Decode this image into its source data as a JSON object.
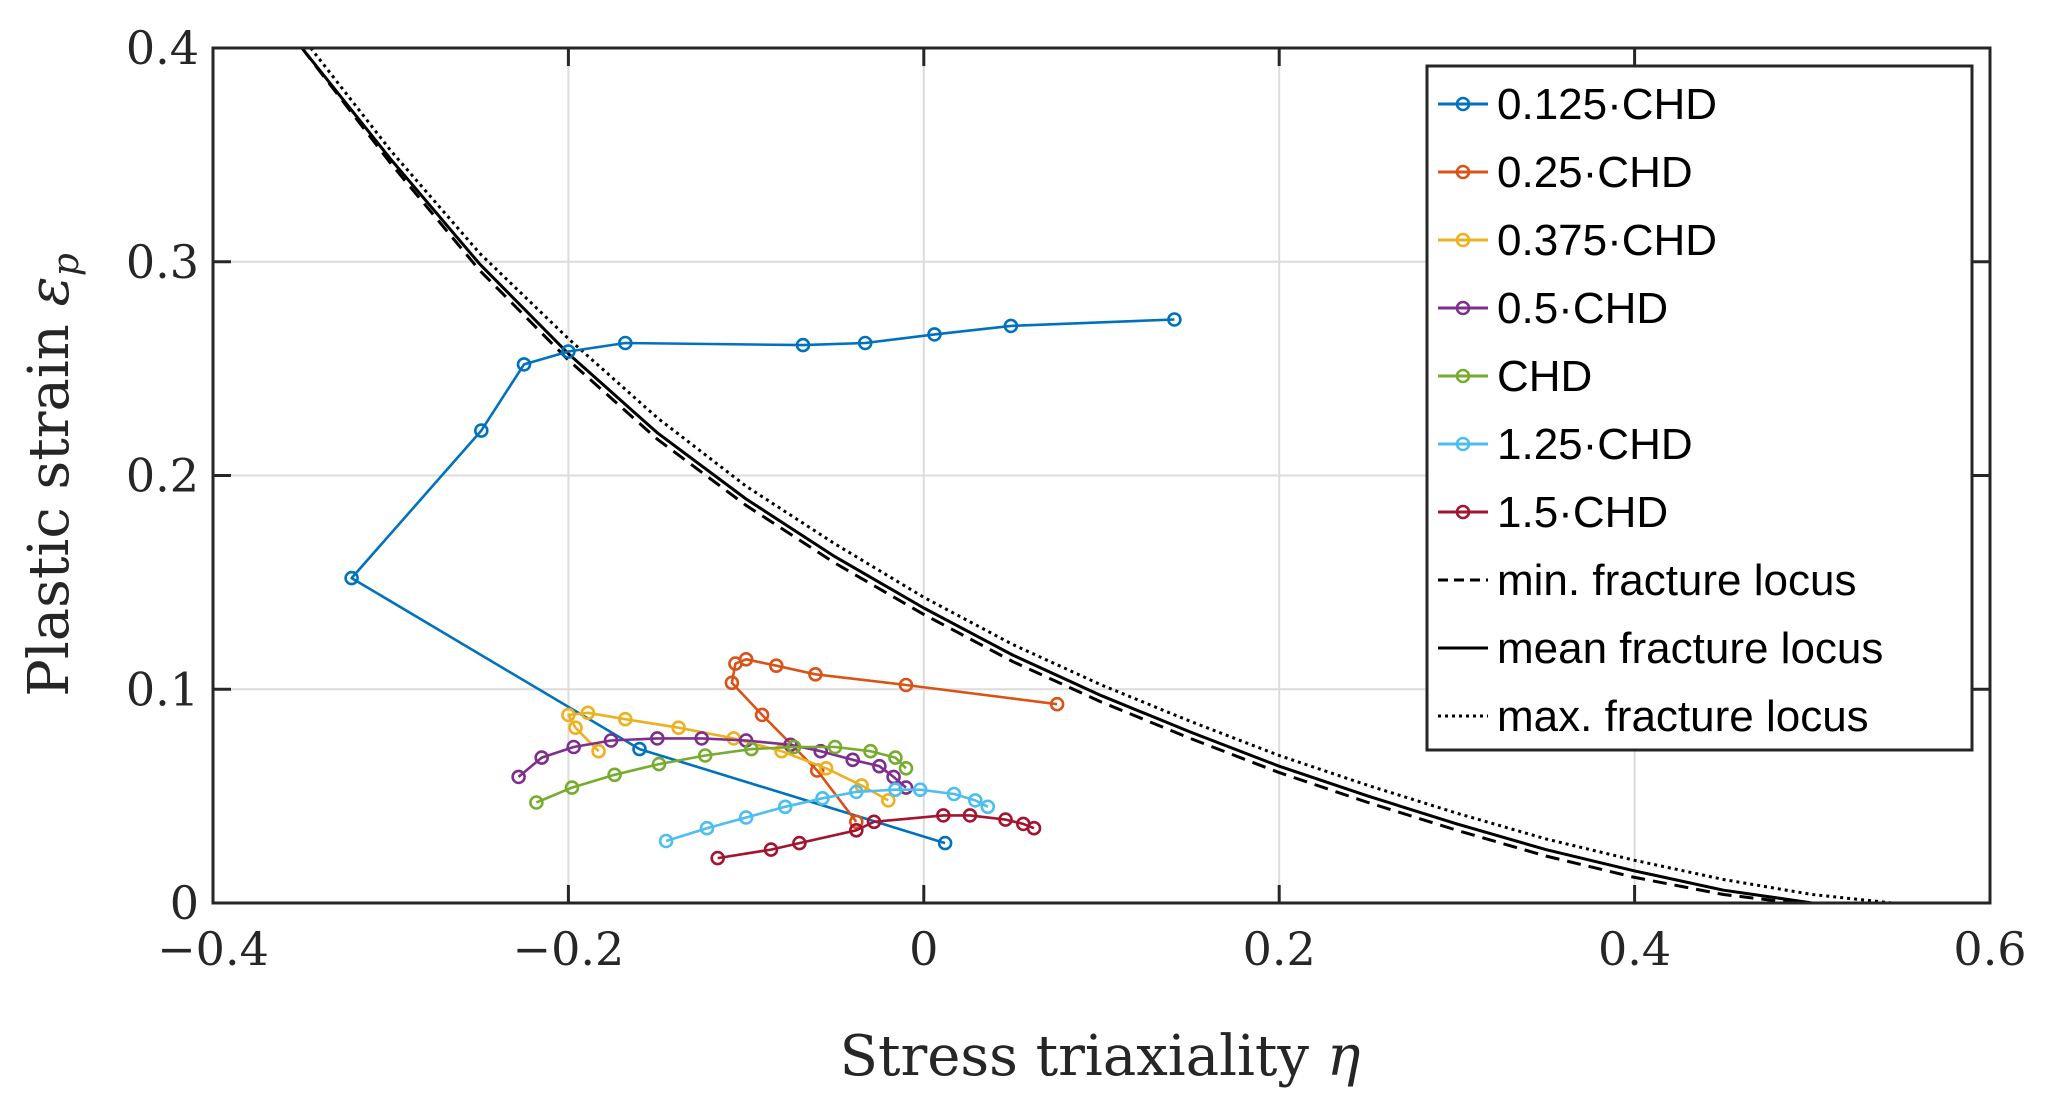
{
  "chart_data": {
    "type": "line",
    "xlabel": "Stress triaxiality",
    "xlabel_symbol": "η",
    "ylabel": "Plastic strain",
    "ylabel_symbol": "ε",
    "ylabel_subscript": "p",
    "xlim": [
      -0.4,
      0.6
    ],
    "ylim": [
      0,
      0.4
    ],
    "xticks": [
      -0.4,
      -0.2,
      0,
      0.2,
      0.4,
      0.6
    ],
    "xtick_labels": [
      "−0.4",
      "−0.2",
      "0",
      "0.2",
      "0.4",
      "0.6"
    ],
    "yticks": [
      0,
      0.1,
      0.2,
      0.3,
      0.4
    ],
    "ytick_labels": [
      "0",
      "0.1",
      "0.2",
      "0.3",
      "0.4"
    ],
    "grid": true,
    "legend_position": "top-right",
    "series": [
      {
        "name": "0.125·CHD",
        "color": "#0072BD",
        "style": "solid",
        "marker": "circle",
        "x": [
          0.012,
          -0.16,
          -0.322,
          -0.249,
          -0.225,
          -0.2,
          -0.168,
          -0.068,
          -0.033,
          0.006,
          0.049,
          0.141
        ],
        "y": [
          0.028,
          0.072,
          0.152,
          0.221,
          0.252,
          0.258,
          0.262,
          0.261,
          0.262,
          0.266,
          0.27,
          0.273
        ]
      },
      {
        "name": "0.25·CHD",
        "color": "#D95319",
        "style": "solid",
        "marker": "circle",
        "x": [
          -0.038,
          -0.06,
          -0.091,
          -0.108,
          -0.106,
          -0.1,
          -0.083,
          -0.061,
          -0.01,
          0.075
        ],
        "y": [
          0.038,
          0.062,
          0.088,
          0.103,
          0.112,
          0.114,
          0.111,
          0.107,
          0.102,
          0.093
        ]
      },
      {
        "name": "0.375·CHD",
        "color": "#EDB120",
        "style": "solid",
        "marker": "circle",
        "x": [
          -0.02,
          -0.035,
          -0.055,
          -0.08,
          -0.107,
          -0.138,
          -0.168,
          -0.189,
          -0.2,
          -0.196,
          -0.183
        ],
        "y": [
          0.048,
          0.055,
          0.063,
          0.071,
          0.077,
          0.082,
          0.086,
          0.089,
          0.088,
          0.082,
          0.071
        ]
      },
      {
        "name": "0.5·CHD",
        "color": "#7E2F8E",
        "style": "solid",
        "marker": "circle",
        "x": [
          -0.228,
          -0.215,
          -0.197,
          -0.176,
          -0.15,
          -0.125,
          -0.1,
          -0.075,
          -0.058,
          -0.04,
          -0.025,
          -0.017,
          -0.01
        ],
        "y": [
          0.059,
          0.068,
          0.073,
          0.076,
          0.077,
          0.077,
          0.076,
          0.074,
          0.071,
          0.067,
          0.064,
          0.059,
          0.054
        ]
      },
      {
        "name": "CHD",
        "color": "#77AC30",
        "style": "solid",
        "marker": "circle",
        "x": [
          -0.218,
          -0.198,
          -0.174,
          -0.149,
          -0.123,
          -0.097,
          -0.073,
          -0.05,
          -0.03,
          -0.016,
          -0.01
        ],
        "y": [
          0.047,
          0.054,
          0.06,
          0.065,
          0.069,
          0.072,
          0.073,
          0.073,
          0.071,
          0.068,
          0.063
        ]
      },
      {
        "name": "1.25·CHD",
        "color": "#4DBEEE",
        "style": "solid",
        "marker": "circle",
        "x": [
          -0.145,
          -0.122,
          -0.1,
          -0.078,
          -0.057,
          -0.038,
          -0.016,
          -0.002,
          0.017,
          0.029,
          0.036
        ],
        "y": [
          0.029,
          0.035,
          0.04,
          0.045,
          0.049,
          0.052,
          0.053,
          0.053,
          0.051,
          0.048,
          0.045
        ]
      },
      {
        "name": "1.5·CHD",
        "color": "#A2142F",
        "style": "solid",
        "marker": "circle",
        "x": [
          -0.116,
          -0.086,
          -0.07,
          -0.038,
          -0.028,
          0.011,
          0.026,
          0.046,
          0.056,
          0.062
        ],
        "y": [
          0.021,
          0.025,
          0.028,
          0.034,
          0.038,
          0.041,
          0.041,
          0.039,
          0.037,
          0.035
        ]
      },
      {
        "name": "min. fracture locus",
        "color": "#000000",
        "style": "dashed",
        "marker": "none",
        "x": [
          -0.35,
          -0.3,
          -0.25,
          -0.2,
          -0.15,
          -0.1,
          -0.05,
          0.0,
          0.05,
          0.1,
          0.15,
          0.2,
          0.25,
          0.3,
          0.35,
          0.4,
          0.45,
          0.49
        ],
        "y": [
          0.4,
          0.346,
          0.296,
          0.254,
          0.217,
          0.186,
          0.159,
          0.135,
          0.113,
          0.094,
          0.077,
          0.061,
          0.047,
          0.034,
          0.022,
          0.012,
          0.004,
          0.0
        ]
      },
      {
        "name": "mean fracture locus",
        "color": "#000000",
        "style": "solid",
        "marker": "none",
        "x": [
          -0.35,
          -0.3,
          -0.25,
          -0.2,
          -0.15,
          -0.1,
          -0.05,
          0.0,
          0.05,
          0.1,
          0.15,
          0.2,
          0.25,
          0.3,
          0.35,
          0.4,
          0.45,
          0.5
        ],
        "y": [
          0.4,
          0.348,
          0.299,
          0.257,
          0.22,
          0.189,
          0.162,
          0.138,
          0.116,
          0.097,
          0.08,
          0.064,
          0.05,
          0.037,
          0.025,
          0.015,
          0.006,
          0.0
        ]
      },
      {
        "name": "max. fracture locus",
        "color": "#000000",
        "style": "dotted",
        "marker": "none",
        "x": [
          -0.345,
          -0.3,
          -0.25,
          -0.2,
          -0.15,
          -0.1,
          -0.05,
          0.0,
          0.05,
          0.1,
          0.15,
          0.2,
          0.25,
          0.3,
          0.35,
          0.4,
          0.45,
          0.5,
          0.545
        ],
        "y": [
          0.4,
          0.352,
          0.304,
          0.264,
          0.227,
          0.195,
          0.168,
          0.143,
          0.121,
          0.102,
          0.085,
          0.069,
          0.055,
          0.042,
          0.03,
          0.02,
          0.011,
          0.004,
          0.0
        ]
      }
    ]
  }
}
